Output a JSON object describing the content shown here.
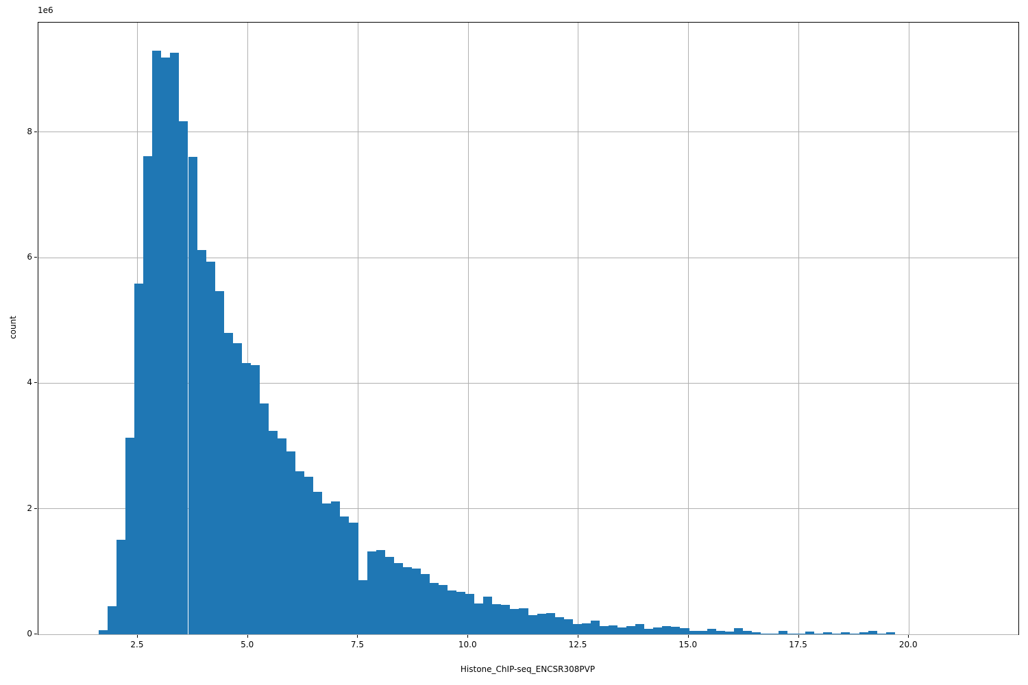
{
  "chart_data": {
    "type": "bar",
    "subtype": "histogram",
    "title": "",
    "xlabel": "Histone_ChIP-seq_ENCSR308PVP",
    "ylabel": "count",
    "y_offset_text": "1e6",
    "bar_color": "#1f77b4",
    "grid_color": "#b0b0b0",
    "spine_color": "#000000",
    "grid": "on",
    "legend": "none",
    "xlim": [
      0.246,
      22.484
    ],
    "ylim_1e6": [
      0,
      9.746
    ],
    "x_ticks": [
      2.5,
      5.0,
      7.5,
      10.0,
      12.5,
      15.0,
      17.5,
      20.0
    ],
    "x_tick_labels": [
      "2.5",
      "5.0",
      "7.5",
      "10.0",
      "12.5",
      "15.0",
      "17.5",
      "20.0"
    ],
    "y_ticks_1e6": [
      0,
      2,
      4,
      6,
      8
    ],
    "y_tick_labels": [
      "0",
      "2",
      "4",
      "6",
      "8"
    ],
    "bin_start": 1.614,
    "bin_width": 0.203,
    "counts_1e6": [
      0.07,
      0.45,
      1.51,
      3.13,
      5.59,
      7.62,
      9.3,
      9.19,
      9.27,
      8.18,
      7.61,
      6.12,
      5.94,
      5.47,
      4.8,
      4.64,
      4.32,
      4.29,
      3.68,
      3.24,
      3.12,
      2.91,
      2.6,
      2.51,
      2.27,
      2.09,
      2.12,
      1.88,
      1.78,
      0.86,
      1.32,
      1.34,
      1.23,
      1.13,
      1.07,
      1.05,
      0.96,
      0.82,
      0.79,
      0.7,
      0.68,
      0.64,
      0.49,
      0.6,
      0.48,
      0.47,
      0.4,
      0.42,
      0.31,
      0.33,
      0.335,
      0.27,
      0.24,
      0.16,
      0.18,
      0.22,
      0.13,
      0.14,
      0.11,
      0.13,
      0.16,
      0.09,
      0.11,
      0.13,
      0.12,
      0.1,
      0.06,
      0.055,
      0.09,
      0.05,
      0.04,
      0.095,
      0.05,
      0.036,
      0.01,
      0.01,
      0.055,
      0.01,
      0.015,
      0.044,
      0.015,
      0.03,
      0.007,
      0.036,
      0.007,
      0.033,
      0.05,
      0.007,
      0.035
    ]
  }
}
